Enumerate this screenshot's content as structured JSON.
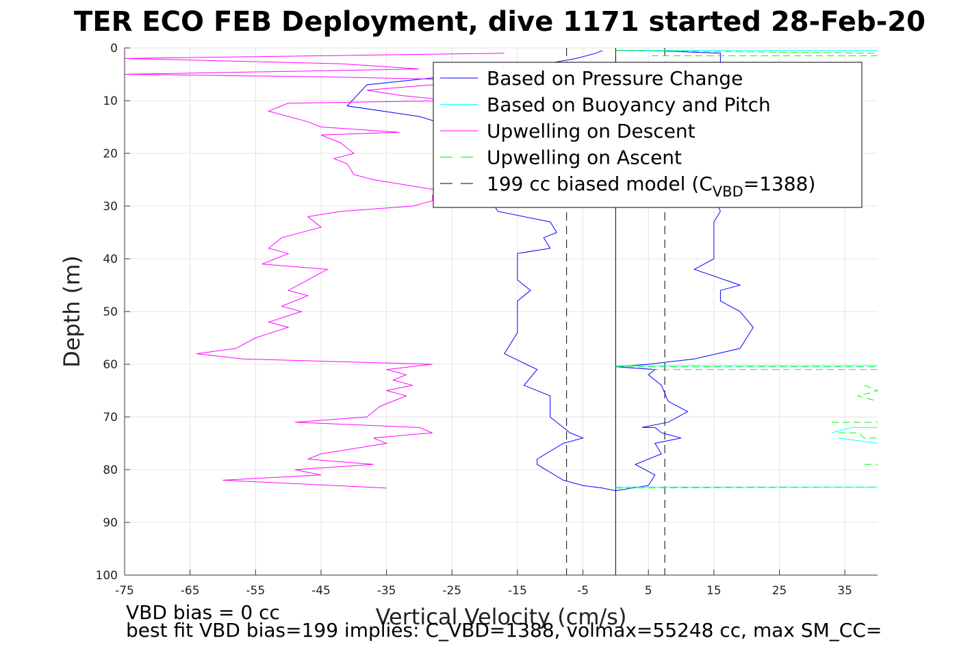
{
  "chart_data": {
    "type": "line",
    "title": "TER ECO FEB Deployment, dive 1171 started 28-Feb-20",
    "xlabel": "Vertical Velocity (cm/s)",
    "ylabel": "Depth (m)",
    "xlim": [
      -75,
      40
    ],
    "ylim": [
      0,
      100
    ],
    "y_reversed": true,
    "grid": true,
    "x_ticks": [
      "-75",
      "-65",
      "-55",
      "-45",
      "-35",
      "-25",
      "-15",
      "-5",
      "5",
      "15",
      "25",
      "35"
    ],
    "y_ticks": [
      "0",
      "10",
      "20",
      "30",
      "40",
      "50",
      "60",
      "70",
      "80",
      "90",
      "100"
    ],
    "legend_placement": "top-right",
    "legend": [
      {
        "label": "Based on Pressure Change",
        "color": "#0000ff",
        "dash": "solid"
      },
      {
        "label": "Based on Buoyancy and Pitch",
        "color": "#00ffff",
        "dash": "solid"
      },
      {
        "label": "Upwelling on Descent",
        "color": "#ff00ff",
        "dash": "solid"
      },
      {
        "label": "Upwelling on Ascent",
        "color": "#00ff00",
        "dash": "dashed"
      },
      {
        "label_main": "199 cc biased model (C",
        "label_sub": "VBD",
        "label_tail": "=1388)",
        "color": "#000000",
        "dash": "dashed"
      }
    ],
    "reference_lines": [
      {
        "x": 0,
        "style": "solid",
        "color": "#000000"
      },
      {
        "x": -7.5,
        "style": "dashed",
        "color": "#000000"
      },
      {
        "x": 7.5,
        "style": "dashed",
        "color": "#000000"
      }
    ],
    "series": [
      {
        "name": "Based on Pressure Change (descent)",
        "color": "#0000ff",
        "points": [
          [
            -2,
            0.5
          ],
          [
            -3,
            1
          ],
          [
            -6,
            2
          ],
          [
            -15,
            4
          ],
          [
            -38,
            7
          ],
          [
            -41,
            11
          ],
          [
            -30,
            13
          ],
          [
            -22,
            16
          ],
          [
            -20,
            20
          ],
          [
            -19,
            25
          ],
          [
            -19,
            29
          ],
          [
            -18,
            31
          ],
          [
            -10,
            33
          ],
          [
            -9,
            35
          ],
          [
            -11,
            36
          ],
          [
            -10,
            38
          ],
          [
            -15,
            39
          ],
          [
            -15,
            44
          ],
          [
            -13,
            46
          ],
          [
            -15,
            48
          ],
          [
            -15,
            54
          ],
          [
            -17,
            58
          ],
          [
            -12,
            61
          ],
          [
            -14,
            64
          ],
          [
            -10,
            66
          ],
          [
            -10,
            70
          ],
          [
            -8,
            72
          ],
          [
            -7,
            73
          ],
          [
            -5,
            74
          ],
          [
            -8,
            75
          ],
          [
            -12,
            78
          ],
          [
            -12,
            79
          ],
          [
            -8,
            82
          ],
          [
            -5,
            83
          ],
          [
            -2,
            83.5
          ],
          [
            0,
            84
          ]
        ]
      },
      {
        "name": "Based on Pressure Change (ascent)",
        "color": "#0000ff",
        "points": [
          [
            0,
            84
          ],
          [
            5,
            83
          ],
          [
            6,
            81
          ],
          [
            3,
            79
          ],
          [
            7,
            77
          ],
          [
            6,
            75
          ],
          [
            10,
            74
          ],
          [
            7,
            73
          ],
          [
            6,
            72
          ],
          [
            4,
            72
          ],
          [
            8,
            71
          ],
          [
            11,
            69
          ],
          [
            8,
            67
          ],
          [
            7,
            64
          ],
          [
            5,
            62
          ],
          [
            6,
            61
          ],
          [
            0,
            60.5
          ],
          [
            5,
            60
          ],
          [
            12,
            59
          ],
          [
            19,
            57
          ],
          [
            21,
            53
          ],
          [
            19,
            50
          ],
          [
            16,
            48
          ],
          [
            16,
            46
          ],
          [
            19,
            45
          ],
          [
            12,
            42
          ],
          [
            15,
            40
          ],
          [
            15,
            37
          ],
          [
            15,
            33
          ],
          [
            16,
            31
          ],
          [
            15,
            28
          ],
          [
            15,
            23
          ],
          [
            14,
            18
          ],
          [
            13,
            13
          ],
          [
            12,
            8
          ],
          [
            14,
            5
          ],
          [
            16,
            3
          ],
          [
            16,
            1
          ],
          [
            5,
            0.5
          ],
          [
            0,
            0.5
          ]
        ]
      },
      {
        "name": "Based on Buoyancy and Pitch",
        "color": "#00ffff",
        "points_list": [
          [
            [
              0,
              0.5
            ],
            [
              40,
              0.5
            ]
          ],
          [
            [
              0,
              60.3
            ],
            [
              40,
              60.3
            ]
          ],
          [
            [
              0,
              83.3
            ],
            [
              40,
              83.3
            ]
          ],
          [
            [
              33,
              73
            ],
            [
              36,
              72
            ],
            [
              40,
              72
            ]
          ],
          [
            [
              34,
              74
            ],
            [
              40,
              75
            ]
          ]
        ]
      },
      {
        "name": "Upwelling on Descent",
        "color": "#ff00ff",
        "points": [
          [
            -17,
            1
          ],
          [
            -75,
            2
          ],
          [
            -42,
            3
          ],
          [
            -30,
            4
          ],
          [
            -75,
            5
          ],
          [
            -44,
            5.5
          ],
          [
            -25,
            6
          ],
          [
            -28,
            7
          ],
          [
            -38,
            8
          ],
          [
            -33,
            9
          ],
          [
            -25,
            10
          ],
          [
            -50,
            10.5
          ],
          [
            -53,
            12
          ],
          [
            -47,
            14
          ],
          [
            -45,
            15
          ],
          [
            -33,
            16
          ],
          [
            -45,
            16.5
          ],
          [
            -42,
            18
          ],
          [
            -40,
            20
          ],
          [
            -43,
            21
          ],
          [
            -41,
            22
          ],
          [
            -40,
            24
          ],
          [
            -37,
            25
          ],
          [
            -27,
            27
          ],
          [
            -28,
            28
          ],
          [
            -28,
            29
          ],
          [
            -31,
            30
          ],
          [
            -42,
            31
          ],
          [
            -47,
            32
          ],
          [
            -45,
            34
          ],
          [
            -51,
            36
          ],
          [
            -53,
            38
          ],
          [
            -50,
            39
          ],
          [
            -54,
            41
          ],
          [
            -44,
            42
          ],
          [
            -47,
            44
          ],
          [
            -50,
            46
          ],
          [
            -47,
            47
          ],
          [
            -51,
            49
          ],
          [
            -48,
            50
          ],
          [
            -53,
            52
          ],
          [
            -50,
            53
          ],
          [
            -55,
            55
          ],
          [
            -58,
            57
          ],
          [
            -64,
            58
          ],
          [
            -57,
            59
          ],
          [
            -28,
            60
          ],
          [
            -35,
            61
          ],
          [
            -32,
            62
          ],
          [
            -34,
            63
          ],
          [
            -31,
            64
          ],
          [
            -35,
            65
          ],
          [
            -32,
            66
          ],
          [
            -36,
            68
          ],
          [
            -38,
            70
          ],
          [
            -49,
            71
          ],
          [
            -30,
            72
          ],
          [
            -28,
            73
          ],
          [
            -37,
            74
          ],
          [
            -35,
            75
          ],
          [
            -45,
            77
          ],
          [
            -47,
            78
          ],
          [
            -37,
            79
          ],
          [
            -49,
            80
          ],
          [
            -45,
            81
          ],
          [
            -60,
            82
          ],
          [
            -43,
            83
          ],
          [
            -35,
            83.5
          ]
        ]
      },
      {
        "name": "Upwelling on Ascent",
        "color": "#00ff00",
        "points_list": [
          [
            [
              0,
              0.5
            ],
            [
              40,
              1
            ]
          ],
          [
            [
              40,
              1.5
            ],
            [
              5,
              1.5
            ]
          ],
          [
            [
              0,
              60.5
            ],
            [
              40,
              60.5
            ]
          ],
          [
            [
              40,
              61
            ],
            [
              5,
              61
            ]
          ],
          [
            [
              38,
              64
            ],
            [
              40,
              65
            ],
            [
              37,
              66
            ],
            [
              40,
              67
            ]
          ],
          [
            [
              33,
              71
            ],
            [
              40,
              71
            ]
          ],
          [
            [
              34,
              73
            ],
            [
              37,
              73
            ],
            [
              38,
              74
            ],
            [
              40,
              74
            ]
          ],
          [
            [
              38,
              79
            ],
            [
              40,
              79
            ]
          ],
          [
            [
              0,
              83.5
            ],
            [
              40,
              83.3
            ]
          ]
        ]
      }
    ]
  },
  "footer": {
    "line1": "VBD bias = 0 cc",
    "line2": "best fit VBD bias=199 implies: C_VBD=1388, volmax=55248 cc, max SM_CC="
  }
}
